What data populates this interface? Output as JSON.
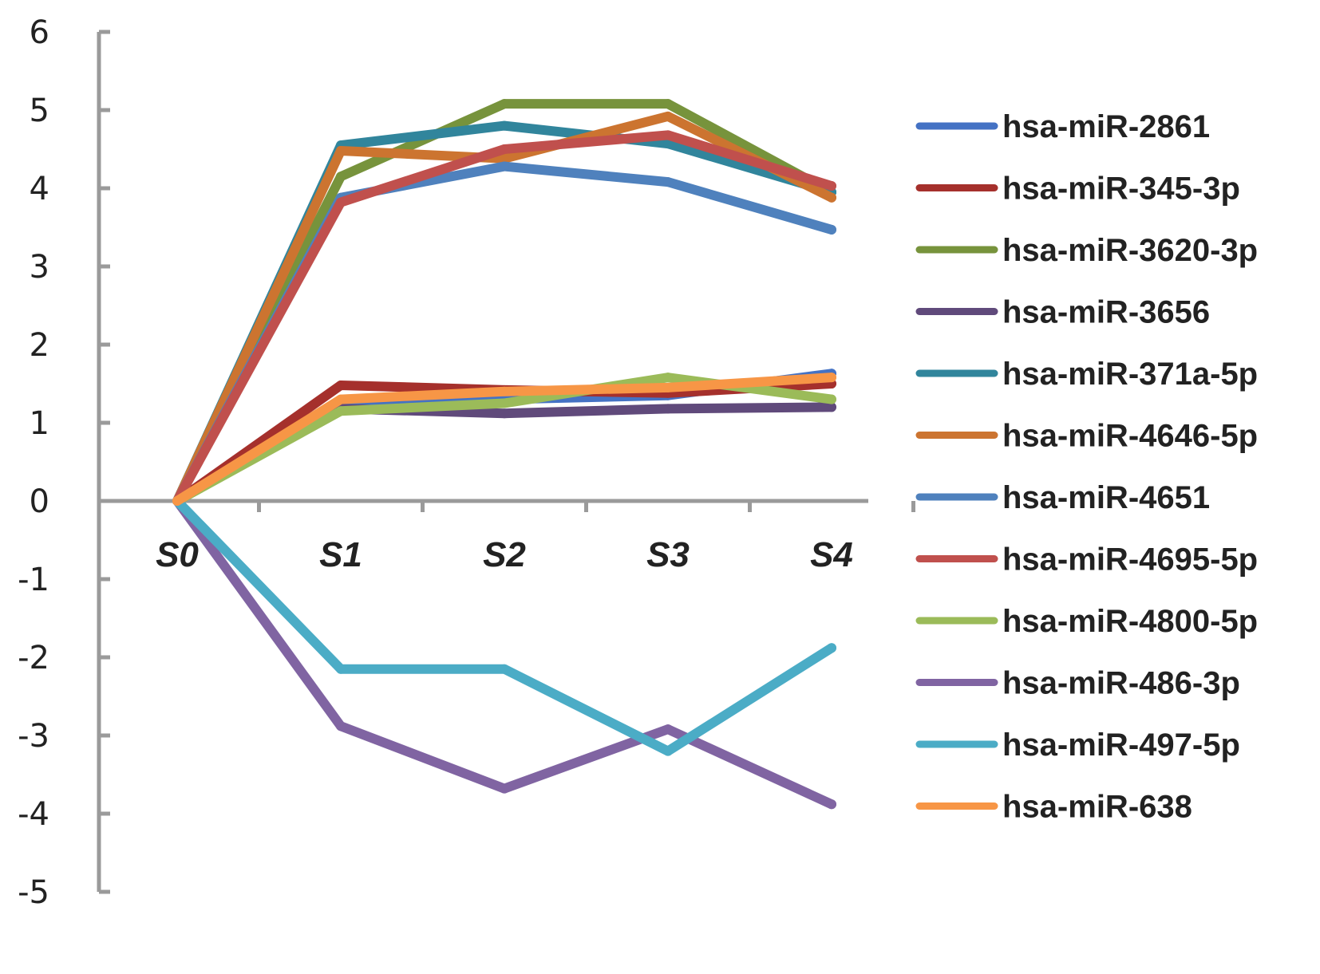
{
  "chart_data": {
    "type": "line",
    "categories": [
      "S0",
      "S1",
      "S2",
      "S3",
      "S4"
    ],
    "ylim": [
      -5,
      6
    ],
    "yticks": [
      6,
      5,
      4,
      3,
      2,
      1,
      0,
      -1,
      -2,
      -3,
      -4,
      -5
    ],
    "ytick_labels": [
      "6",
      "5",
      "4",
      "3",
      "2",
      "1",
      "0",
      "-1",
      "-2",
      "-3",
      "-4",
      "-5"
    ],
    "grid": false,
    "legend_position": "right",
    "series": [
      {
        "name": "hsa-miR-2861",
        "color": "#4472C4",
        "values": [
          0,
          1.28,
          1.3,
          1.35,
          1.63
        ]
      },
      {
        "name": "hsa-miR-345-3p",
        "color": "#A5302C",
        "values": [
          0,
          1.48,
          1.42,
          1.38,
          1.5
        ]
      },
      {
        "name": "hsa-miR-3620-3p",
        "color": "#77933C",
        "values": [
          0,
          4.15,
          5.08,
          5.08,
          3.95
        ]
      },
      {
        "name": "hsa-miR-3656",
        "color": "#604A7B",
        "values": [
          0,
          1.18,
          1.12,
          1.18,
          1.2
        ]
      },
      {
        "name": "hsa-miR-371a-5p",
        "color": "#31859C",
        "values": [
          0,
          4.55,
          4.8,
          4.57,
          3.95
        ]
      },
      {
        "name": "hsa-miR-4646-5p",
        "color": "#CC7430",
        "values": [
          0,
          4.48,
          4.38,
          4.92,
          3.88
        ]
      },
      {
        "name": "hsa-miR-4651",
        "color": "#4F81BD",
        "values": [
          0,
          3.88,
          4.28,
          4.08,
          3.47
        ]
      },
      {
        "name": "hsa-miR-4695-5p",
        "color": "#C0504D",
        "values": [
          0,
          3.82,
          4.5,
          4.68,
          4.03
        ]
      },
      {
        "name": "hsa-miR-4800-5p",
        "color": "#9BBB59",
        "values": [
          0,
          1.15,
          1.25,
          1.58,
          1.3
        ]
      },
      {
        "name": "hsa-miR-486-3p",
        "color": "#8064A2",
        "values": [
          0,
          -2.88,
          -3.68,
          -2.92,
          -3.88
        ]
      },
      {
        "name": "hsa-miR-497-5p",
        "color": "#4BACC6",
        "values": [
          0,
          -2.15,
          -2.15,
          -3.2,
          -1.88
        ]
      },
      {
        "name": "hsa-miR-638",
        "color": "#F79646",
        "values": [
          0,
          1.3,
          1.4,
          1.45,
          1.58
        ]
      }
    ]
  }
}
